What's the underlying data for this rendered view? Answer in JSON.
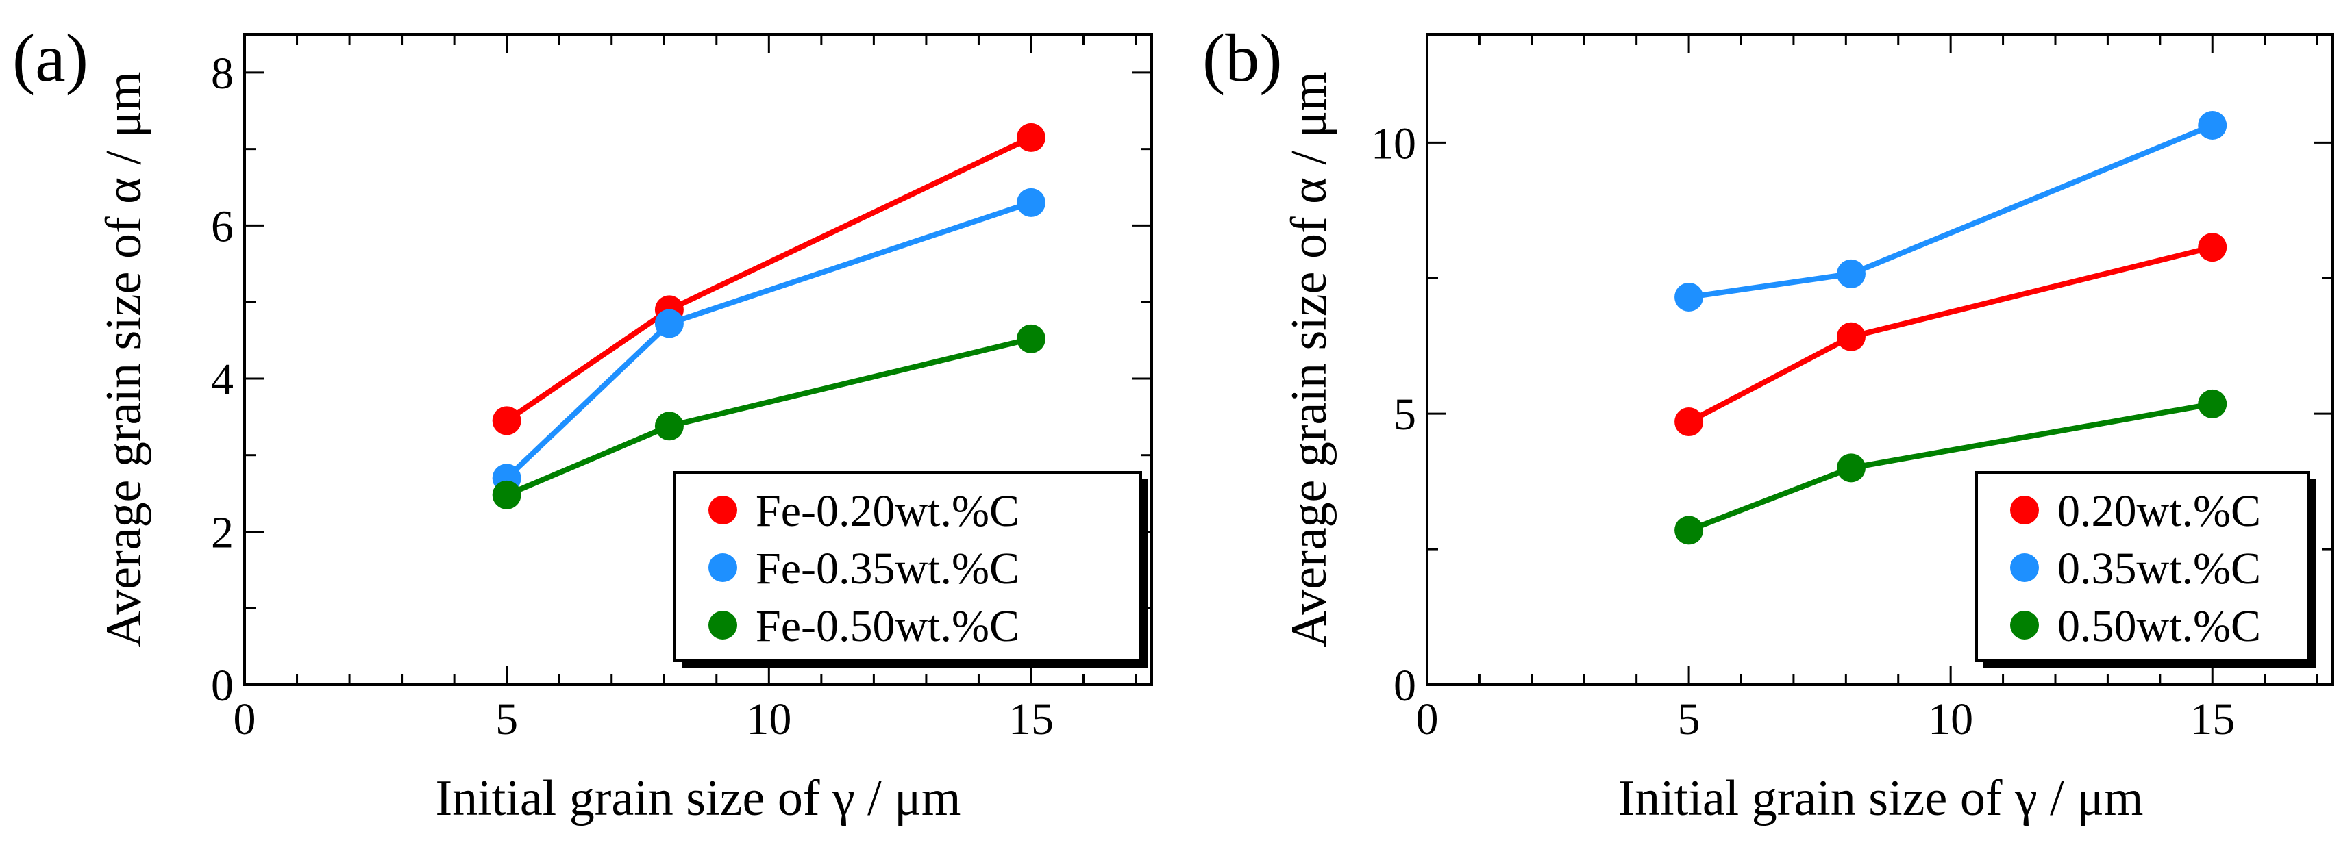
{
  "chart_data": [
    {
      "type": "line",
      "panel_label": "(a)",
      "xlabel": "Initial grain size of γ / μm",
      "ylabel": "Average grain size of α / μm",
      "xlim": [
        0,
        17.3
      ],
      "ylim": [
        0,
        8.5
      ],
      "xticks": [
        0,
        5,
        10,
        15
      ],
      "yticks": [
        0,
        2,
        4,
        6,
        8
      ],
      "legend_position": "bottom-right",
      "series": [
        {
          "name": "Fe-0.20wt.%C",
          "color": "#ff0000",
          "x": [
            5,
            8.1,
            15
          ],
          "y": [
            3.45,
            4.9,
            7.15
          ]
        },
        {
          "name": "Fe-0.35wt.%C",
          "color": "#1e90ff",
          "x": [
            5,
            8.1,
            15
          ],
          "y": [
            2.7,
            4.72,
            6.3
          ]
        },
        {
          "name": "Fe-0.50wt.%C",
          "color": "#008000",
          "x": [
            5,
            8.1,
            15
          ],
          "y": [
            2.48,
            3.38,
            4.52
          ]
        }
      ]
    },
    {
      "type": "line",
      "panel_label": "(b)",
      "xlabel": "Initial grain size of γ / μm",
      "ylabel": "Average grain size of α / μm",
      "xlim": [
        0,
        17.3
      ],
      "ylim": [
        0,
        12.0
      ],
      "xticks": [
        0,
        5,
        10,
        15
      ],
      "yticks": [
        0,
        5,
        10
      ],
      "legend_position": "bottom-right",
      "series": [
        {
          "name": "0.20wt.%C",
          "color": "#ff0000",
          "x": [
            5,
            8.1,
            15
          ],
          "y": [
            4.85,
            6.42,
            8.07
          ]
        },
        {
          "name": "0.35wt.%C",
          "color": "#1e90ff",
          "x": [
            5,
            8.1,
            15
          ],
          "y": [
            7.15,
            7.58,
            10.32
          ]
        },
        {
          "name": "0.50wt.%C",
          "color": "#008000",
          "x": [
            5,
            8.1,
            15
          ],
          "y": [
            2.85,
            4.0,
            5.18
          ]
        }
      ]
    }
  ]
}
